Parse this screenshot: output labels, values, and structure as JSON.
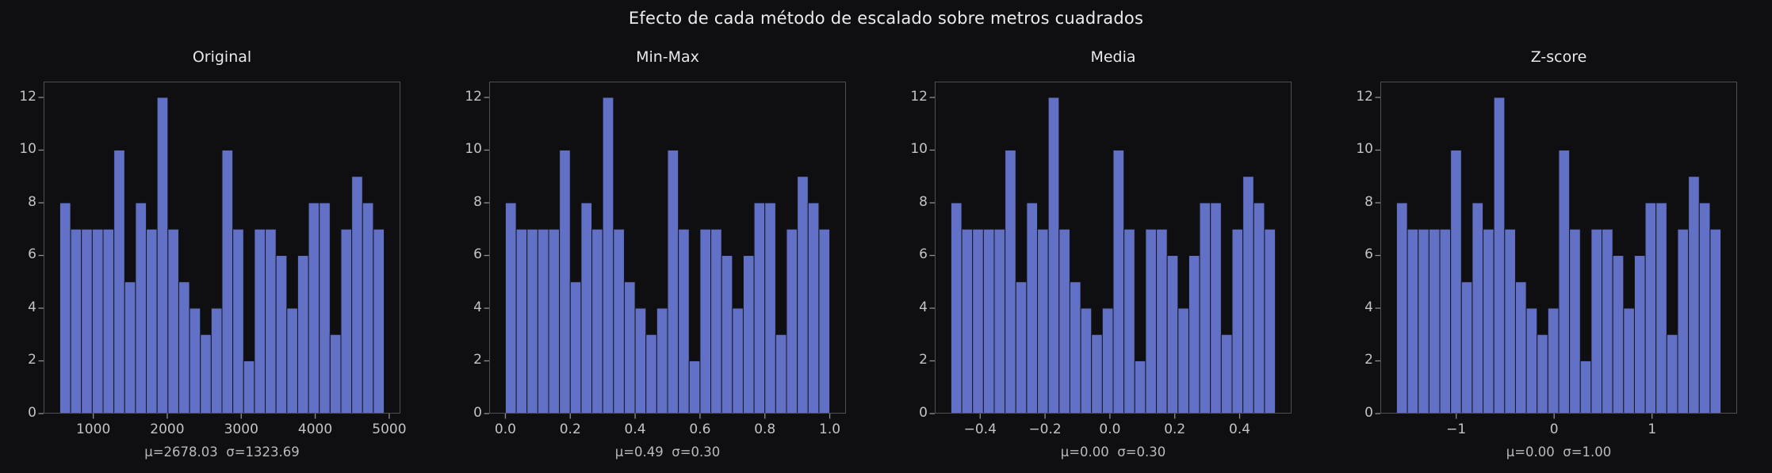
{
  "figure": {
    "title": "Efecto de cada método de escalado sobre metros cuadrados"
  },
  "colors": {
    "background": "#0f0f12",
    "bar_fill": "#6271c6",
    "bar_edge": "#15151c",
    "spine": "#4e4e56",
    "tick_mark": "#8d8d93",
    "tick_label": "#c3c3c7",
    "title_text": "#e8e8ea",
    "stats_text": "#bababd"
  },
  "chart_data": {
    "type": "bar",
    "subtype": "histogram",
    "suptitle": "Efecto de cada método de escalado sobre metros cuadrados",
    "n_samples": 200,
    "n_bins": 30,
    "bin_counts": [
      8,
      7,
      7,
      7,
      7,
      10,
      5,
      8,
      7,
      12,
      7,
      5,
      4,
      3,
      4,
      10,
      7,
      2,
      7,
      7,
      6,
      4,
      6,
      8,
      8,
      3,
      7,
      9,
      8,
      7
    ],
    "yticks": [
      0,
      2,
      4,
      6,
      8,
      10,
      12
    ],
    "ylim": [
      0,
      12.6
    ],
    "grid": false,
    "legend": "none",
    "subplots": [
      {
        "id": "original",
        "title": "Original",
        "stats": "μ=2678.03  σ=1323.69",
        "mu": "2678.03",
        "sigma": "1323.69",
        "data_min": 548,
        "data_max": 4932,
        "xlim": [
          328.8,
          5151.2
        ],
        "xticks": [
          {
            "label": "1000",
            "value": 1000
          },
          {
            "label": "2000",
            "value": 2000
          },
          {
            "label": "3000",
            "value": 3000
          },
          {
            "label": "4000",
            "value": 4000
          },
          {
            "label": "5000",
            "value": 5000
          }
        ]
      },
      {
        "id": "minmax",
        "title": "Min-Max",
        "stats": "μ=0.49  σ=0.30",
        "mu": "0.49",
        "sigma": "0.30",
        "data_min": 0.0,
        "data_max": 1.0,
        "xlim": [
          -0.05,
          1.05
        ],
        "xticks": [
          {
            "label": "0.0",
            "value": 0.0
          },
          {
            "label": "0.2",
            "value": 0.2
          },
          {
            "label": "0.4",
            "value": 0.4
          },
          {
            "label": "0.6",
            "value": 0.6
          },
          {
            "label": "0.8",
            "value": 0.8
          },
          {
            "label": "1.0",
            "value": 1.0
          }
        ]
      },
      {
        "id": "media",
        "title": "Media",
        "stats": "μ=0.00  σ=0.30",
        "mu": "0.00",
        "sigma": "0.30",
        "data_min": -0.49,
        "data_max": 0.51,
        "xlim": [
          -0.54,
          0.56
        ],
        "xticks": [
          {
            "label": "−0.4",
            "value": -0.4
          },
          {
            "label": "−0.2",
            "value": -0.2
          },
          {
            "label": "0.0",
            "value": 0.0
          },
          {
            "label": "0.2",
            "value": 0.2
          },
          {
            "label": "0.4",
            "value": 0.4
          }
        ]
      },
      {
        "id": "zscore",
        "title": "Z-score",
        "stats": "μ=0.00  σ=1.00",
        "mu": "0.00",
        "sigma": "1.00",
        "data_min": -1.6092,
        "data_max": 1.7028,
        "xlim": [
          -1.7748,
          1.8684
        ],
        "xticks": [
          {
            "label": "−1",
            "value": -1
          },
          {
            "label": "0",
            "value": 0
          },
          {
            "label": "1",
            "value": 1
          }
        ]
      }
    ]
  }
}
